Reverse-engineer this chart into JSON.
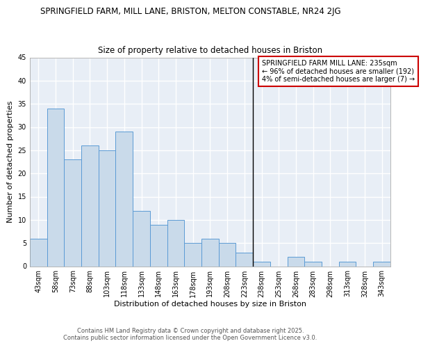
{
  "title": "SPRINGFIELD FARM, MILL LANE, BRISTON, MELTON CONSTABLE, NR24 2JG",
  "subtitle": "Size of property relative to detached houses in Briston",
  "xlabel": "Distribution of detached houses by size in Briston",
  "ylabel": "Number of detached properties",
  "categories": [
    "43sqm",
    "58sqm",
    "73sqm",
    "88sqm",
    "103sqm",
    "118sqm",
    "133sqm",
    "148sqm",
    "163sqm",
    "178sqm",
    "193sqm",
    "208sqm",
    "223sqm",
    "238sqm",
    "253sqm",
    "268sqm",
    "283sqm",
    "298sqm",
    "313sqm",
    "328sqm",
    "343sqm"
  ],
  "values": [
    6,
    34,
    23,
    26,
    25,
    29,
    12,
    9,
    10,
    5,
    6,
    5,
    3,
    1,
    0,
    2,
    1,
    0,
    1,
    0,
    1
  ],
  "bar_color": "#c9daea",
  "bar_edge_color": "#5b9bd5",
  "vline_color": "#000000",
  "vline_pos": 12.5,
  "ylim": [
    0,
    45
  ],
  "yticks": [
    0,
    5,
    10,
    15,
    20,
    25,
    30,
    35,
    40,
    45
  ],
  "legend_text_line1": "SPRINGFIELD FARM MILL LANE: 235sqm",
  "legend_text_line2": "← 96% of detached houses are smaller (192)",
  "legend_text_line3": "4% of semi-detached houses are larger (7) →",
  "legend_box_color": "#ffffff",
  "legend_box_edge_color": "#cc0000",
  "background_color": "#e8eef6",
  "fig_background_color": "#ffffff",
  "grid_color": "#ffffff",
  "footer_line1": "Contains HM Land Registry data © Crown copyright and database right 2025.",
  "footer_line2": "Contains public sector information licensed under the Open Government Licence v3.0.",
  "title_fontsize": 8.5,
  "subtitle_fontsize": 8.5,
  "axis_label_fontsize": 8,
  "tick_fontsize": 7,
  "legend_fontsize": 7,
  "footer_fontsize": 6
}
